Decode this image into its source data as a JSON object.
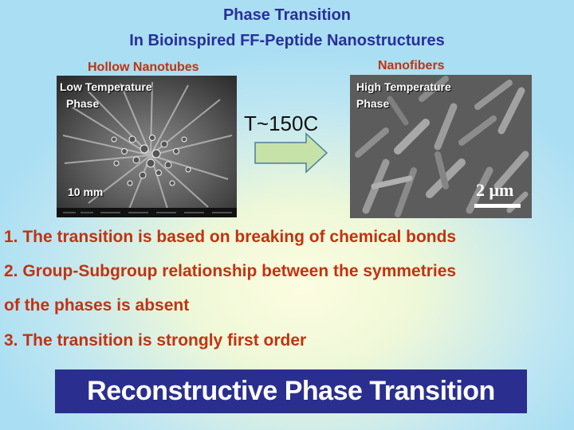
{
  "title": {
    "line1": "Phase Transition",
    "line2": "In Bioinspired FF-Peptide Nanostructures"
  },
  "left_panel": {
    "caption": "Hollow Nanotubes",
    "label_line1": "Low Temperature",
    "label_line2": "Phase",
    "scale": "10 mm"
  },
  "right_panel": {
    "caption": "Nanofibers",
    "label_line1": "High Temperature",
    "label_line2": "Phase",
    "scale": "2 μm"
  },
  "transition_temp": "T~150C",
  "points": [
    "1. The transition is based on breaking of chemical bonds",
    "2. Group-Subgroup relationship between the symmetries",
    "of the phases is absent",
    "3. The transition is strongly first order"
  ],
  "banner": "Reconstructive Phase Transition",
  "colors": {
    "title": "#2a2f99",
    "accent": "#c2330f",
    "banner_bg": "#2a2f8f",
    "arrow_fill": "#c6e2a8",
    "arrow_stroke": "#4a7fa0"
  }
}
